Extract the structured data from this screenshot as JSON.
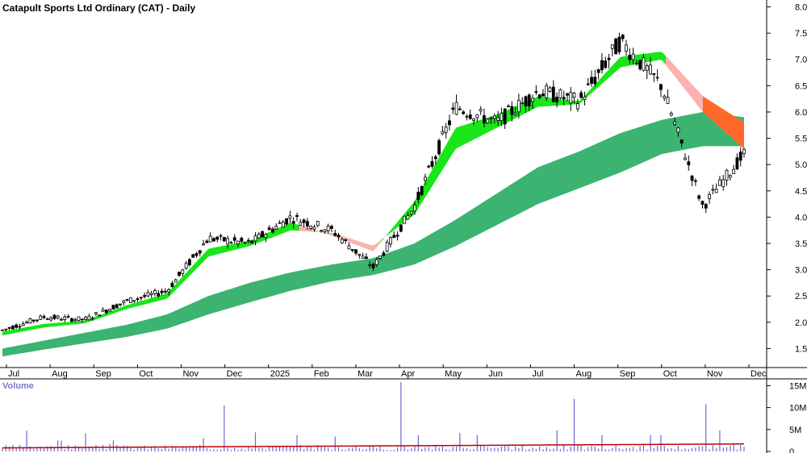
{
  "chart_data": [
    {
      "type": "candlestick",
      "title": "Catapult Sports Ltd Ordinary (CAT) - Daily",
      "y_ticks": [
        "8.0",
        "7.5",
        "7.0",
        "6.5",
        "6.0",
        "5.5",
        "5.0",
        "4.5",
        "4.0",
        "3.5",
        "3.0",
        "2.5",
        "2.0",
        "1.5"
      ],
      "ylim": [
        1.2,
        8.1
      ],
      "x_labels": [
        "Jul",
        "Aug",
        "Sep",
        "Oct",
        "Nov",
        "Dec",
        "2025",
        "Feb",
        "Mar",
        "Apr",
        "May",
        "Jun",
        "Jul",
        "Aug",
        "Sep",
        "Oct",
        "Nov",
        "Dec"
      ],
      "price_points": [
        [
          "Jul",
          1.85
        ],
        [
          "Aug",
          2.1
        ],
        [
          "Sep",
          2.05
        ],
        [
          "Oct",
          2.4
        ],
        [
          "Nov",
          2.6
        ],
        [
          "Dec",
          3.6
        ],
        [
          "2025",
          3.5
        ],
        [
          "Feb",
          4.0
        ],
        [
          "Mar",
          3.75
        ],
        [
          "Apr",
          3.05
        ],
        [
          "May",
          4.2
        ],
        [
          "Jun",
          6.1
        ],
        [
          "Jul",
          5.8
        ],
        [
          "Aug",
          6.4
        ],
        [
          "Sep",
          6.2
        ],
        [
          "Oct",
          7.35
        ],
        [
          "Nov",
          6.5
        ],
        [
          "Nov",
          4.2
        ],
        [
          "Dec",
          5.2
        ]
      ],
      "short_term_band_top": [
        1.82,
        1.97,
        2.03,
        2.32,
        2.55,
        3.4,
        3.55,
        3.9,
        3.65,
        3.35,
        4.3,
        5.7,
        5.95,
        6.3,
        6.2,
        7.05,
        7.15,
        6.3,
        5.8
      ],
      "short_term_band_bottom": [
        1.75,
        1.9,
        1.98,
        2.25,
        2.45,
        3.25,
        3.45,
        3.75,
        3.7,
        3.45,
        4.05,
        5.3,
        5.7,
        6.1,
        6.15,
        6.85,
        7.0,
        6.0,
        5.3
      ],
      "long_term_band_top": [
        1.5,
        1.65,
        1.8,
        1.95,
        2.15,
        2.5,
        2.75,
        2.95,
        3.1,
        3.22,
        3.5,
        3.95,
        4.45,
        4.95,
        5.25,
        5.6,
        5.85,
        6.0,
        5.9
      ],
      "long_term_band_bottom": [
        1.35,
        1.48,
        1.6,
        1.72,
        1.88,
        2.15,
        2.38,
        2.6,
        2.78,
        2.9,
        3.1,
        3.45,
        3.85,
        4.25,
        4.55,
        4.85,
        5.2,
        5.35,
        5.35
      ],
      "colors": {
        "short_up": "#19e619",
        "short_down": "#ff6a2a",
        "short_down_light": "#ffb0b0",
        "long": "#3cb371"
      }
    },
    {
      "type": "bar",
      "title": "Volume",
      "y_ticks": [
        "15M",
        "10M",
        "5M",
        "0"
      ],
      "ylim": [
        0,
        16
      ],
      "x_labels": [
        "Jul",
        "Aug",
        "Sep",
        "Oct",
        "Nov",
        "Dec",
        "2025",
        "Feb",
        "Mar",
        "Apr",
        "May",
        "Jun",
        "Jul",
        "Aug",
        "Sep",
        "Oct",
        "Nov",
        "Dec"
      ],
      "volume_spikes_millions": [
        [
          "Nov",
          10.5
        ],
        [
          "Apr",
          15.8
        ],
        [
          "Aug",
          12.0
        ],
        [
          "Nov",
          10.8
        ]
      ],
      "typical_volume_millions": 1.0,
      "colors": {
        "bar": "#6a6ad0",
        "average": "#c00000"
      }
    }
  ]
}
